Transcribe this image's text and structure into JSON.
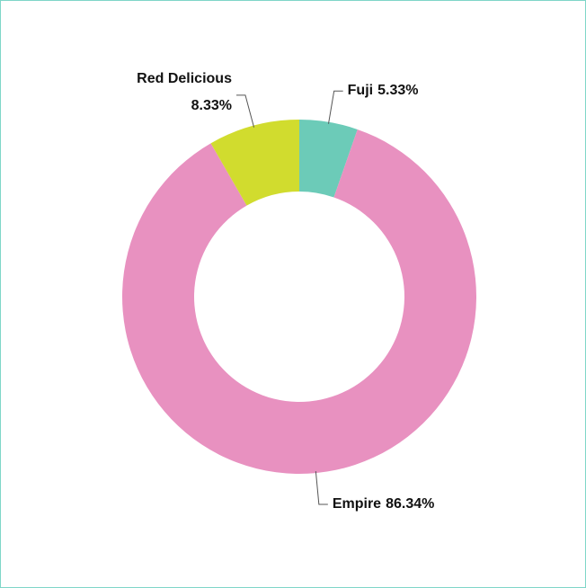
{
  "chart_data": {
    "type": "donut",
    "categories": [
      "Fuji",
      "Empire",
      "Red Delicious"
    ],
    "values": [
      5.33,
      86.34,
      8.33
    ],
    "value_labels": [
      "5.33%",
      "86.34%",
      "8.33%"
    ],
    "colors": [
      "#6ccbb8",
      "#e891c0",
      "#d1dc2e"
    ]
  }
}
